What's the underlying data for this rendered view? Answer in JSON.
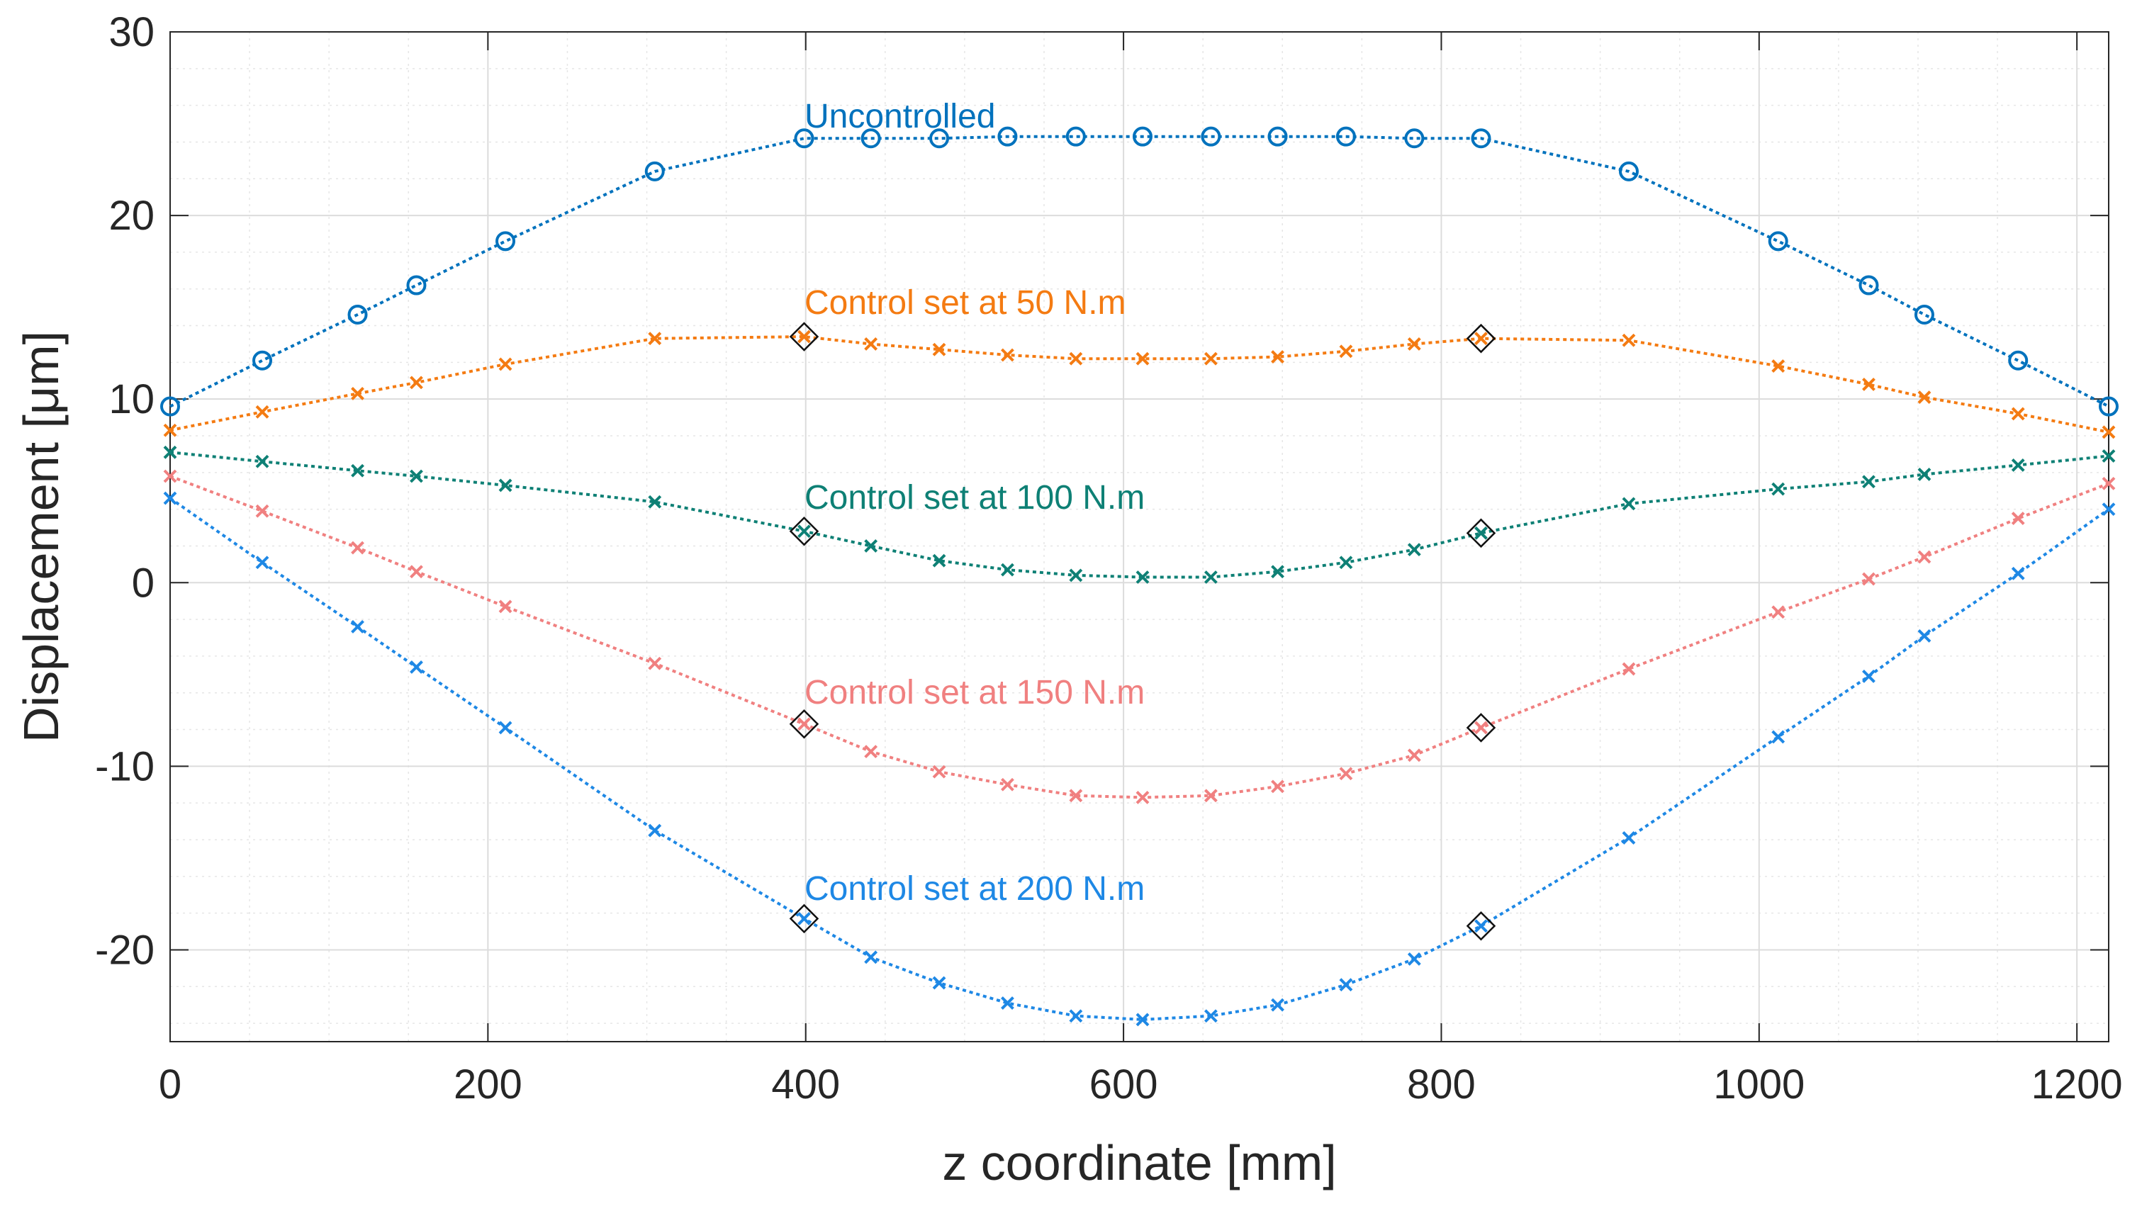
{
  "chart_data": {
    "type": "line",
    "title": "",
    "xlabel": "z coordinate [mm]",
    "ylabel": "Displacement [μm]",
    "xlim": [
      0,
      1220
    ],
    "ylim": [
      -25,
      30
    ],
    "xticks": [
      0,
      200,
      400,
      600,
      800,
      1000,
      1200
    ],
    "yticks": [
      -20,
      -10,
      0,
      10,
      20,
      30
    ],
    "grid": true,
    "x": [
      0,
      58,
      118,
      155,
      211,
      305,
      399,
      441,
      484,
      527,
      570,
      612,
      655,
      697,
      740,
      783,
      825,
      918,
      1012,
      1069,
      1104,
      1163,
      1220
    ],
    "sensor_positions": [
      399,
      825
    ],
    "series": [
      {
        "name": "Uncontrolled",
        "color": "#0072BD",
        "marker": "circle",
        "values": [
          9.6,
          12.1,
          14.6,
          16.2,
          18.6,
          22.4,
          24.2,
          24.2,
          24.2,
          24.3,
          24.3,
          24.3,
          24.3,
          24.3,
          24.3,
          24.2,
          24.2,
          22.4,
          18.6,
          16.2,
          14.6,
          12.1,
          9.6
        ]
      },
      {
        "name": "Control set at 50 N.m",
        "color": "#F47B12",
        "marker": "x",
        "values": [
          8.3,
          9.3,
          10.3,
          10.9,
          11.9,
          13.3,
          13.4,
          13.0,
          12.7,
          12.4,
          12.2,
          12.2,
          12.2,
          12.3,
          12.6,
          13.0,
          13.3,
          13.2,
          11.8,
          10.8,
          10.1,
          9.2,
          8.2
        ]
      },
      {
        "name": "Control set at 100 N.m",
        "color": "#0E8075",
        "marker": "x",
        "values": [
          7.1,
          6.6,
          6.1,
          5.8,
          5.3,
          4.4,
          2.8,
          2.0,
          1.2,
          0.7,
          0.4,
          0.3,
          0.3,
          0.6,
          1.1,
          1.8,
          2.7,
          4.3,
          5.1,
          5.5,
          5.9,
          6.4,
          6.9
        ]
      },
      {
        "name": "Control set at 150 N.m",
        "color": "#F08080",
        "marker": "x",
        "values": [
          5.8,
          3.9,
          1.9,
          0.6,
          -1.3,
          -4.4,
          -7.7,
          -9.2,
          -10.3,
          -11.0,
          -11.6,
          -11.7,
          -11.6,
          -11.1,
          -10.4,
          -9.4,
          -7.9,
          -4.7,
          -1.6,
          0.2,
          1.4,
          3.5,
          5.4
        ]
      },
      {
        "name": "Control set at 200 N.m",
        "color": "#1E88E5",
        "marker": "x",
        "values": [
          4.6,
          1.1,
          -2.4,
          -4.6,
          -7.9,
          -13.5,
          -18.3,
          -20.4,
          -21.8,
          -22.9,
          -23.6,
          -23.8,
          -23.6,
          -23.0,
          -21.9,
          -20.5,
          -18.7,
          -13.9,
          -8.4,
          -5.1,
          -2.9,
          0.5,
          4.0
        ]
      }
    ]
  }
}
